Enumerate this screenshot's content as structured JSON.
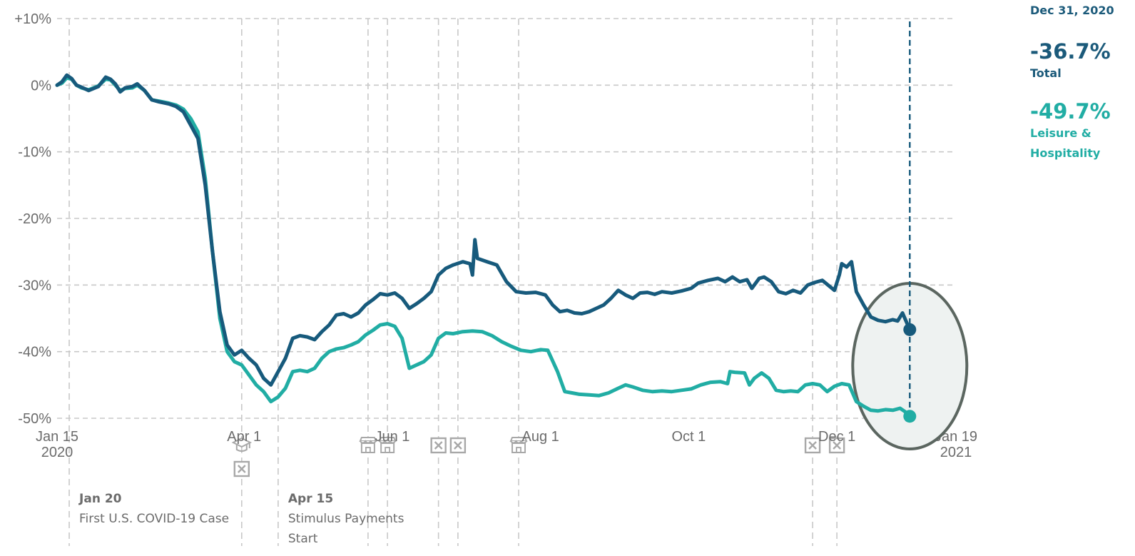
{
  "readout": {
    "date": "Dec 31, 2020",
    "total_value": "-36.7%",
    "total_label": "Total",
    "leisure_value": "-49.7%",
    "leisure_label": "Leisure & Hospitality"
  },
  "colors": {
    "total": "#175a7c",
    "leisure": "#21ada4",
    "grid": "#c8c8c8",
    "axis_text": "#6b6b6b",
    "highlight_fill": "#eef2f1",
    "highlight_stroke": "#5b6660",
    "event_icon": "#a8a8a8"
  },
  "chart_data": {
    "type": "line",
    "x_domain": [
      "2020-01-15",
      "2021-01-19"
    ],
    "ylim": [
      -50,
      10
    ],
    "y_ticks": [
      {
        "value": 10,
        "label": "+10%"
      },
      {
        "value": 0,
        "label": "0%"
      },
      {
        "value": -10,
        "label": "-10%"
      },
      {
        "value": -20,
        "label": "-20%"
      },
      {
        "value": -30,
        "label": "-30%"
      },
      {
        "value": -40,
        "label": "-40%"
      },
      {
        "value": -50,
        "label": "-50%"
      }
    ],
    "x_ticks": [
      {
        "date": "2020-01-15",
        "label": "Jan 15",
        "label2": "2020"
      },
      {
        "date": "2020-04-01",
        "label": "Apr 1",
        "label2": ""
      },
      {
        "date": "2020-06-01",
        "label": "Jun 1",
        "label2": ""
      },
      {
        "date": "2020-08-01",
        "label": "Aug 1",
        "label2": ""
      },
      {
        "date": "2020-10-01",
        "label": "Oct 1",
        "label2": ""
      },
      {
        "date": "2020-12-01",
        "label": "Dec 1",
        "label2": ""
      },
      {
        "date": "2021-01-19",
        "label": "Jan 19",
        "label2": "2021"
      }
    ],
    "event_lines": [
      {
        "date": "2020-01-20",
        "icons": []
      },
      {
        "date": "2020-03-31",
        "icons": [
          "school-icon",
          "closed-icon"
        ]
      },
      {
        "date": "2020-04-15",
        "icons": []
      },
      {
        "date": "2020-05-22",
        "icons": [
          "store-icon"
        ]
      },
      {
        "date": "2020-05-30",
        "icons": [
          "store-icon"
        ]
      },
      {
        "date": "2020-06-20",
        "icons": [
          "closed-icon"
        ]
      },
      {
        "date": "2020-06-28",
        "icons": [
          "closed-icon"
        ]
      },
      {
        "date": "2020-07-23",
        "icons": [
          "store-icon"
        ]
      },
      {
        "date": "2020-11-21",
        "icons": [
          "closed-icon"
        ]
      },
      {
        "date": "2020-12-01",
        "icons": [
          "closed-icon"
        ]
      }
    ],
    "annotations": [
      {
        "date": "2020-01-20",
        "title": "Jan 20",
        "text": [
          "First U.S. COVID-19 Case"
        ]
      },
      {
        "date": "2020-04-15",
        "title": "Apr 15",
        "text": [
          "Stimulus Payments",
          "Start"
        ]
      }
    ],
    "highlight_date": "2020-12-31",
    "series": [
      {
        "name": "Total",
        "points": [
          [
            "2020-01-15",
            0
          ],
          [
            "2020-01-17",
            0.5
          ],
          [
            "2020-01-19",
            1.5
          ],
          [
            "2020-01-21",
            1
          ],
          [
            "2020-01-23",
            0
          ],
          [
            "2020-01-25",
            -0.3
          ],
          [
            "2020-01-28",
            -0.8
          ],
          [
            "2020-02-01",
            -0.2
          ],
          [
            "2020-02-04",
            1.2
          ],
          [
            "2020-02-06",
            0.9
          ],
          [
            "2020-02-08",
            0.2
          ],
          [
            "2020-02-10",
            -1
          ],
          [
            "2020-02-12",
            -0.4
          ],
          [
            "2020-02-15",
            -0.2
          ],
          [
            "2020-02-17",
            0.2
          ],
          [
            "2020-02-20",
            -0.8
          ],
          [
            "2020-02-23",
            -2.2
          ],
          [
            "2020-02-26",
            -2.5
          ],
          [
            "2020-03-01",
            -2.8
          ],
          [
            "2020-03-04",
            -3.2
          ],
          [
            "2020-03-07",
            -4
          ],
          [
            "2020-03-10",
            -6
          ],
          [
            "2020-03-13",
            -8
          ],
          [
            "2020-03-16",
            -15
          ],
          [
            "2020-03-19",
            -25
          ],
          [
            "2020-03-22",
            -34
          ],
          [
            "2020-03-25",
            -39
          ],
          [
            "2020-03-28",
            -40.5
          ],
          [
            "2020-03-31",
            -39.8
          ],
          [
            "2020-04-03",
            -41
          ],
          [
            "2020-04-06",
            -42
          ],
          [
            "2020-04-09",
            -44
          ],
          [
            "2020-04-12",
            -45
          ],
          [
            "2020-04-15",
            -43
          ],
          [
            "2020-04-18",
            -41
          ],
          [
            "2020-04-21",
            -38
          ],
          [
            "2020-04-24",
            -37.6
          ],
          [
            "2020-04-27",
            -37.8
          ],
          [
            "2020-04-30",
            -38.2
          ],
          [
            "2020-05-03",
            -37
          ],
          [
            "2020-05-06",
            -36
          ],
          [
            "2020-05-09",
            -34.5
          ],
          [
            "2020-05-12",
            -34.3
          ],
          [
            "2020-05-15",
            -34.8
          ],
          [
            "2020-05-18",
            -34.2
          ],
          [
            "2020-05-21",
            -33
          ],
          [
            "2020-05-24",
            -32.2
          ],
          [
            "2020-05-27",
            -31.3
          ],
          [
            "2020-05-30",
            -31.5
          ],
          [
            "2020-06-02",
            -31.2
          ],
          [
            "2020-06-05",
            -32
          ],
          [
            "2020-06-08",
            -33.5
          ],
          [
            "2020-06-11",
            -32.8
          ],
          [
            "2020-06-14",
            -32
          ],
          [
            "2020-06-17",
            -31
          ],
          [
            "2020-06-20",
            -28.5
          ],
          [
            "2020-06-23",
            -27.5
          ],
          [
            "2020-06-26",
            -27
          ],
          [
            "2020-06-30",
            -26.5
          ],
          [
            "2020-07-03",
            -26.8
          ],
          [
            "2020-07-04",
            -28.5
          ],
          [
            "2020-07-05",
            -23.2
          ],
          [
            "2020-07-06",
            -26
          ],
          [
            "2020-07-10",
            -26.5
          ],
          [
            "2020-07-14",
            -27
          ],
          [
            "2020-07-18",
            -29.5
          ],
          [
            "2020-07-22",
            -31
          ],
          [
            "2020-07-26",
            -31.2
          ],
          [
            "2020-07-30",
            -31.1
          ],
          [
            "2020-08-03",
            -31.5
          ],
          [
            "2020-08-06",
            -33
          ],
          [
            "2020-08-09",
            -34
          ],
          [
            "2020-08-12",
            -33.8
          ],
          [
            "2020-08-15",
            -34.2
          ],
          [
            "2020-08-18",
            -34.3
          ],
          [
            "2020-08-21",
            -34
          ],
          [
            "2020-08-24",
            -33.5
          ],
          [
            "2020-08-27",
            -33
          ],
          [
            "2020-08-30",
            -32
          ],
          [
            "2020-09-02",
            -30.8
          ],
          [
            "2020-09-05",
            -31.5
          ],
          [
            "2020-09-08",
            -32
          ],
          [
            "2020-09-11",
            -31.2
          ],
          [
            "2020-09-14",
            -31.1
          ],
          [
            "2020-09-17",
            -31.4
          ],
          [
            "2020-09-20",
            -31
          ],
          [
            "2020-09-24",
            -31.2
          ],
          [
            "2020-09-28",
            -30.9
          ],
          [
            "2020-10-02",
            -30.5
          ],
          [
            "2020-10-05",
            -29.7
          ],
          [
            "2020-10-09",
            -29.3
          ],
          [
            "2020-10-13",
            -29
          ],
          [
            "2020-10-16",
            -29.5
          ],
          [
            "2020-10-19",
            -28.8
          ],
          [
            "2020-10-22",
            -29.5
          ],
          [
            "2020-10-25",
            -29.2
          ],
          [
            "2020-10-27",
            -30.5
          ],
          [
            "2020-10-30",
            -29
          ],
          [
            "2020-11-01",
            -28.8
          ],
          [
            "2020-11-04",
            -29.5
          ],
          [
            "2020-11-07",
            -31
          ],
          [
            "2020-11-10",
            -31.3
          ],
          [
            "2020-11-13",
            -30.8
          ],
          [
            "2020-11-16",
            -31.2
          ],
          [
            "2020-11-19",
            -30
          ],
          [
            "2020-11-22",
            -29.6
          ],
          [
            "2020-11-25",
            -29.3
          ],
          [
            "2020-11-28",
            -30.2
          ],
          [
            "2020-11-30",
            -30.8
          ],
          [
            "2020-12-02",
            -28.5
          ],
          [
            "2020-12-03",
            -26.8
          ],
          [
            "2020-12-05",
            -27.3
          ],
          [
            "2020-12-07",
            -26.5
          ],
          [
            "2020-12-09",
            -31
          ],
          [
            "2020-12-12",
            -33
          ],
          [
            "2020-12-15",
            -34.8
          ],
          [
            "2020-12-18",
            -35.3
          ],
          [
            "2020-12-21",
            -35.5
          ],
          [
            "2020-12-24",
            -35.2
          ],
          [
            "2020-12-26",
            -35.4
          ],
          [
            "2020-12-28",
            -34.2
          ],
          [
            "2020-12-31",
            -36.7
          ]
        ]
      },
      {
        "name": "Leisure & Hospitality",
        "points": [
          [
            "2020-01-15",
            0
          ],
          [
            "2020-01-17",
            0.3
          ],
          [
            "2020-01-19",
            1.1
          ],
          [
            "2020-01-21",
            0.9
          ],
          [
            "2020-01-23",
            0
          ],
          [
            "2020-01-25",
            -0.4
          ],
          [
            "2020-01-28",
            -0.7
          ],
          [
            "2020-02-01",
            -0.1
          ],
          [
            "2020-02-04",
            0.9
          ],
          [
            "2020-02-06",
            0.8
          ],
          [
            "2020-02-08",
            0
          ],
          [
            "2020-02-10",
            -0.8
          ],
          [
            "2020-02-12",
            -0.5
          ],
          [
            "2020-02-15",
            -0.4
          ],
          [
            "2020-02-17",
            0
          ],
          [
            "2020-02-20",
            -0.8
          ],
          [
            "2020-02-23",
            -2.2
          ],
          [
            "2020-02-26",
            -2.4
          ],
          [
            "2020-03-01",
            -2.7
          ],
          [
            "2020-03-04",
            -3
          ],
          [
            "2020-03-07",
            -3.6
          ],
          [
            "2020-03-10",
            -5
          ],
          [
            "2020-03-13",
            -7
          ],
          [
            "2020-03-16",
            -14
          ],
          [
            "2020-03-19",
            -25
          ],
          [
            "2020-03-22",
            -35
          ],
          [
            "2020-03-25",
            -40
          ],
          [
            "2020-03-28",
            -41.5
          ],
          [
            "2020-03-31",
            -42
          ],
          [
            "2020-04-03",
            -43.5
          ],
          [
            "2020-04-06",
            -45
          ],
          [
            "2020-04-09",
            -46
          ],
          [
            "2020-04-12",
            -47.5
          ],
          [
            "2020-04-15",
            -46.8
          ],
          [
            "2020-04-18",
            -45.5
          ],
          [
            "2020-04-21",
            -43
          ],
          [
            "2020-04-24",
            -42.8
          ],
          [
            "2020-04-27",
            -43
          ],
          [
            "2020-04-30",
            -42.5
          ],
          [
            "2020-05-03",
            -41
          ],
          [
            "2020-05-06",
            -40
          ],
          [
            "2020-05-09",
            -39.6
          ],
          [
            "2020-05-12",
            -39.4
          ],
          [
            "2020-05-15",
            -39
          ],
          [
            "2020-05-18",
            -38.5
          ],
          [
            "2020-05-21",
            -37.5
          ],
          [
            "2020-05-24",
            -36.8
          ],
          [
            "2020-05-27",
            -36
          ],
          [
            "2020-05-30",
            -35.8
          ],
          [
            "2020-06-02",
            -36.2
          ],
          [
            "2020-06-05",
            -38
          ],
          [
            "2020-06-08",
            -42.5
          ],
          [
            "2020-06-11",
            -42
          ],
          [
            "2020-06-14",
            -41.5
          ],
          [
            "2020-06-17",
            -40.5
          ],
          [
            "2020-06-20",
            -38
          ],
          [
            "2020-06-23",
            -37.2
          ],
          [
            "2020-06-26",
            -37.3
          ],
          [
            "2020-06-30",
            -37
          ],
          [
            "2020-07-04",
            -36.9
          ],
          [
            "2020-07-08",
            -37
          ],
          [
            "2020-07-12",
            -37.6
          ],
          [
            "2020-07-16",
            -38.5
          ],
          [
            "2020-07-20",
            -39.2
          ],
          [
            "2020-07-24",
            -39.8
          ],
          [
            "2020-07-28",
            -40
          ],
          [
            "2020-08-01",
            -39.7
          ],
          [
            "2020-08-04",
            -39.8
          ],
          [
            "2020-08-08",
            -43
          ],
          [
            "2020-08-11",
            -46
          ],
          [
            "2020-08-14",
            -46.2
          ],
          [
            "2020-08-17",
            -46.4
          ],
          [
            "2020-08-21",
            -46.5
          ],
          [
            "2020-08-25",
            -46.6
          ],
          [
            "2020-08-29",
            -46.2
          ],
          [
            "2020-09-02",
            -45.5
          ],
          [
            "2020-09-05",
            -45
          ],
          [
            "2020-09-08",
            -45.3
          ],
          [
            "2020-09-12",
            -45.8
          ],
          [
            "2020-09-16",
            -46
          ],
          [
            "2020-09-20",
            -45.9
          ],
          [
            "2020-09-24",
            -46
          ],
          [
            "2020-09-28",
            -45.8
          ],
          [
            "2020-10-02",
            -45.6
          ],
          [
            "2020-10-06",
            -45
          ],
          [
            "2020-10-10",
            -44.6
          ],
          [
            "2020-10-14",
            -44.5
          ],
          [
            "2020-10-17",
            -44.8
          ],
          [
            "2020-10-18",
            -43
          ],
          [
            "2020-10-20",
            -43.1
          ],
          [
            "2020-10-24",
            -43.2
          ],
          [
            "2020-10-26",
            -45
          ],
          [
            "2020-10-28",
            -44
          ],
          [
            "2020-10-31",
            -43.2
          ],
          [
            "2020-11-03",
            -44
          ],
          [
            "2020-11-06",
            -45.8
          ],
          [
            "2020-11-09",
            -46
          ],
          [
            "2020-11-12",
            -45.9
          ],
          [
            "2020-11-15",
            -46
          ],
          [
            "2020-11-18",
            -45
          ],
          [
            "2020-11-21",
            -44.8
          ],
          [
            "2020-11-24",
            -45
          ],
          [
            "2020-11-27",
            -46
          ],
          [
            "2020-11-30",
            -45.2
          ],
          [
            "2020-12-03",
            -44.8
          ],
          [
            "2020-12-06",
            -45
          ],
          [
            "2020-12-09",
            -47.5
          ],
          [
            "2020-12-12",
            -48.2
          ],
          [
            "2020-12-15",
            -48.8
          ],
          [
            "2020-12-18",
            -48.9
          ],
          [
            "2020-12-21",
            -48.7
          ],
          [
            "2020-12-24",
            -48.8
          ],
          [
            "2020-12-27",
            -48.5
          ],
          [
            "2020-12-29",
            -49
          ],
          [
            "2020-12-31",
            -49.7
          ]
        ]
      }
    ]
  }
}
